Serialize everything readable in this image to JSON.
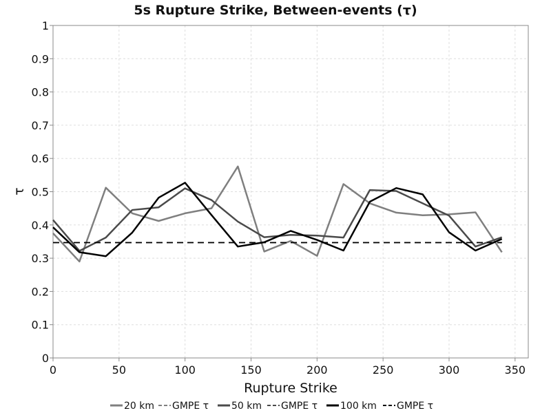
{
  "chart_data": {
    "type": "line",
    "title": "5s Rupture Strike, Between-events (τ)",
    "xlabel": "Rupture Strike",
    "ylabel": "τ",
    "xlim": [
      0,
      360
    ],
    "ylim": [
      0,
      1
    ],
    "xticks": [
      "0",
      "50",
      "100",
      "150",
      "200",
      "250",
      "300",
      "350"
    ],
    "yticks": [
      "0",
      "0.1",
      "0.2",
      "0.3",
      "0.4",
      "0.5",
      "0.6",
      "0.7",
      "0.8",
      "0.9",
      "1"
    ],
    "grid": true,
    "legend_position": "bottom",
    "x": [
      0,
      20,
      40,
      60,
      80,
      100,
      120,
      140,
      160,
      180,
      200,
      220,
      240,
      260,
      280,
      300,
      320,
      340
    ],
    "series": [
      {
        "name": "20 km",
        "color": "#7f7f7f",
        "dash": "solid",
        "values": [
          0.375,
          0.29,
          0.512,
          0.435,
          0.412,
          0.435,
          0.45,
          0.576,
          0.32,
          0.352,
          0.307,
          0.523,
          0.465,
          0.437,
          0.429,
          0.432,
          0.438,
          0.318
        ]
      },
      {
        "name": "GMPE τ",
        "color": "#7f7f7f",
        "dash": "dashed",
        "values": [
          0.347,
          0.347,
          0.347,
          0.347,
          0.347,
          0.347,
          0.347,
          0.347,
          0.347,
          0.347,
          0.347,
          0.347,
          0.347,
          0.347,
          0.347,
          0.347,
          0.347,
          0.347
        ]
      },
      {
        "name": "50 km",
        "color": "#4a4a4a",
        "dash": "solid",
        "values": [
          0.415,
          0.322,
          0.362,
          0.445,
          0.453,
          0.51,
          0.475,
          0.41,
          0.363,
          0.37,
          0.368,
          0.362,
          0.505,
          0.502,
          0.465,
          0.428,
          0.335,
          0.363
        ]
      },
      {
        "name": "GMPE τ",
        "color": "#4a4a4a",
        "dash": "dashed",
        "values": [
          0.347,
          0.347,
          0.347,
          0.347,
          0.347,
          0.347,
          0.347,
          0.347,
          0.347,
          0.347,
          0.347,
          0.347,
          0.347,
          0.347,
          0.347,
          0.347,
          0.347,
          0.347
        ]
      },
      {
        "name": "100 km",
        "color": "#000000",
        "dash": "solid",
        "values": [
          0.393,
          0.318,
          0.306,
          0.377,
          0.482,
          0.527,
          0.43,
          0.335,
          0.348,
          0.382,
          0.355,
          0.323,
          0.47,
          0.511,
          0.492,
          0.378,
          0.323,
          0.358
        ]
      },
      {
        "name": "GMPE τ",
        "color": "#000000",
        "dash": "dashed",
        "values": [
          0.347,
          0.347,
          0.347,
          0.347,
          0.347,
          0.347,
          0.347,
          0.347,
          0.347,
          0.347,
          0.347,
          0.347,
          0.347,
          0.347,
          0.347,
          0.347,
          0.347,
          0.347
        ]
      }
    ]
  }
}
